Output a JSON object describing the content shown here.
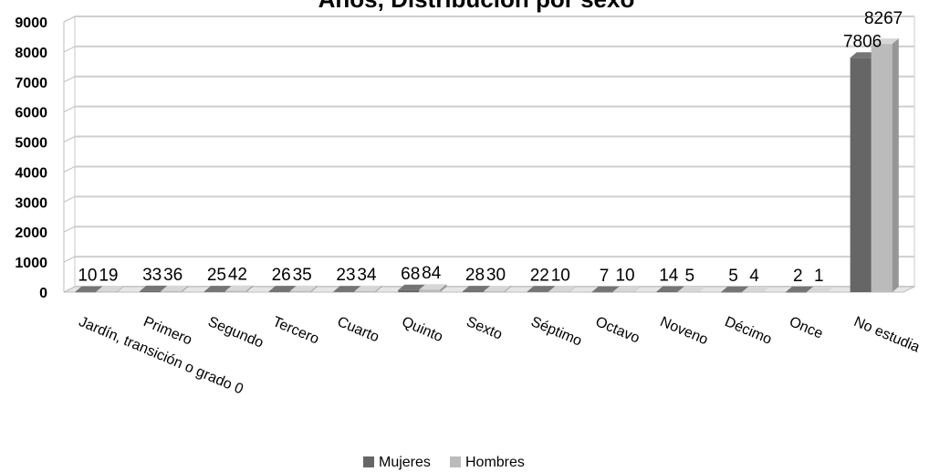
{
  "chart_data": {
    "type": "bar",
    "title": "Años, Distribución por sexo",
    "categories": [
      "Jardín, transición o grado 0",
      "Primero",
      "Segundo",
      "Tercero",
      "Cuarto",
      "Quinto",
      "Sexto",
      "Séptimo",
      "Octavo",
      "Noveno",
      "Décimo",
      "Once",
      "No estudia"
    ],
    "series": [
      {
        "name": "Mujeres",
        "values": [
          10,
          33,
          25,
          26,
          23,
          68,
          28,
          22,
          7,
          14,
          5,
          2,
          7806
        ],
        "color": "#666666"
      },
      {
        "name": "Hombres",
        "values": [
          19,
          36,
          42,
          35,
          34,
          84,
          30,
          10,
          10,
          5,
          4,
          1,
          8267
        ],
        "color": "#bbbbbb"
      }
    ],
    "yticks": [
      "0",
      "1000",
      "2000",
      "3000",
      "4000",
      "5000",
      "6000",
      "7000",
      "8000",
      "9000"
    ],
    "ylim": [
      0,
      9000
    ],
    "grid": true,
    "legend_position": "bottom"
  }
}
